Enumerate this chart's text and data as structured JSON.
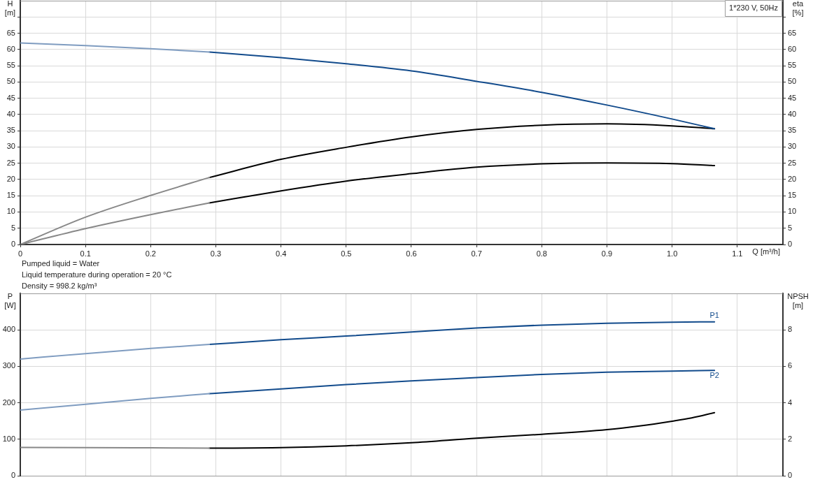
{
  "chart_data": [
    {
      "type": "line",
      "xlabel": "Q [m³/h]",
      "ylabel": "H [m]",
      "y2label": "eta [%]",
      "annotations": [
        "1*230 V, 50Hz"
      ],
      "xlim": [
        0,
        1.17
      ],
      "xticks": [
        0,
        0.1,
        0.2,
        0.3,
        0.4,
        0.5,
        0.6,
        0.7,
        0.8,
        0.9,
        {
          "value": 1,
          "label": "1.0"
        },
        1.1
      ],
      "ylim": [
        0,
        75
      ],
      "yticks": [
        0,
        5,
        10,
        15,
        20,
        25,
        30,
        35,
        40,
        45,
        50,
        55,
        60,
        65,
        {
          "value": 70,
          "label": null
        }
      ],
      "y2lim": [
        0,
        75
      ],
      "y2ticks": [
        0,
        5,
        10,
        15,
        20,
        25,
        30,
        35,
        40,
        45,
        50,
        55,
        60,
        65,
        {
          "value": 70,
          "label": null
        }
      ],
      "grid": true,
      "series": [
        {
          "color": "#7f9cc0",
          "x": [
            0,
            0.1,
            0.2,
            0.29
          ],
          "values": [
            62,
            61.2,
            60.2,
            59.2
          ]
        },
        {
          "color": "#124b8c",
          "x": [
            0.29,
            0.4,
            0.5,
            0.6,
            0.7,
            0.8,
            0.9,
            1.0,
            1.065
          ],
          "values": [
            59.2,
            57.5,
            55.6,
            53.4,
            50.2,
            46.8,
            42.9,
            38.6,
            35.6
          ]
        },
        {
          "color": "#888888",
          "axis": "y2",
          "x": [
            0,
            0.1,
            0.2,
            0.29
          ],
          "values": [
            0,
            8.4,
            15.1,
            20.6
          ]
        },
        {
          "color": "#000000",
          "axis": "y2",
          "x": [
            0.29,
            0.4,
            0.5,
            0.6,
            0.7,
            0.8,
            0.9,
            1.0,
            1.065
          ],
          "values": [
            20.6,
            26.2,
            29.9,
            33.1,
            35.4,
            36.7,
            37.1,
            36.5,
            35.6
          ]
        },
        {
          "color": "#888888",
          "axis": "y2",
          "x": [
            0,
            0.1,
            0.2,
            0.29
          ],
          "values": [
            0,
            4.9,
            9.2,
            12.8
          ]
        },
        {
          "color": "#000000",
          "axis": "y2",
          "x": [
            0.29,
            0.4,
            0.5,
            0.6,
            0.7,
            0.8,
            0.9,
            1.0,
            1.065
          ],
          "values": [
            12.8,
            16.5,
            19.5,
            21.8,
            23.8,
            24.8,
            25.1,
            24.9,
            24.3
          ]
        }
      ]
    },
    {
      "type": "line",
      "ylabel": "P [W]",
      "y2label": "NPSH [m]",
      "annotations": [
        "Pumped liquid = Water",
        "Liquid temperature during operation = 20 °C",
        "Density = 998.2 kg/m³"
      ],
      "xlim": [
        0,
        1.17
      ],
      "xticks": [
        0,
        0.1,
        0.2,
        0.3,
        0.4,
        0.5,
        0.6,
        0.7,
        0.8,
        0.9,
        1,
        1.1
      ],
      "tick_labels": "y",
      "ylim": [
        0,
        500
      ],
      "yticks": [
        0,
        100,
        200,
        300,
        400
      ],
      "y2lim": [
        0,
        10
      ],
      "y2ticks": [
        0,
        2,
        4,
        6,
        8
      ],
      "grid": true,
      "series": [
        {
          "color": "#7f9cc0",
          "x": [
            0,
            0.1,
            0.2,
            0.29
          ],
          "values": [
            320,
            335,
            349,
            360
          ]
        },
        {
          "name": "P1",
          "color": "#124b8c",
          "x": [
            0.29,
            0.4,
            0.5,
            0.6,
            0.7,
            0.8,
            0.9,
            1.0,
            1.065
          ],
          "values": [
            360,
            373,
            383,
            394,
            405,
            413,
            418,
            421,
            422
          ]
        },
        {
          "color": "#7f9cc0",
          "x": [
            0,
            0.1,
            0.2,
            0.29
          ],
          "values": [
            180,
            196,
            212,
            225
          ]
        },
        {
          "name": "P2",
          "color": "#124b8c",
          "x": [
            0.29,
            0.4,
            0.5,
            0.6,
            0.7,
            0.8,
            0.9,
            1.0,
            1.065
          ],
          "values": [
            225,
            238,
            250,
            260,
            269,
            278,
            284,
            287,
            289
          ]
        },
        {
          "color": "#888888",
          "axis": "y2",
          "x": [
            0,
            0.1,
            0.2,
            0.29
          ],
          "values": [
            1.55,
            1.54,
            1.53,
            1.51
          ]
        },
        {
          "color": "#000000",
          "axis": "y2",
          "x": [
            0.29,
            0.4,
            0.5,
            0.6,
            0.7,
            0.8,
            0.9,
            0.95,
            1.0,
            1.03,
            1.065
          ],
          "values": [
            1.51,
            1.54,
            1.64,
            1.81,
            2.06,
            2.27,
            2.53,
            2.73,
            2.99,
            3.17,
            3.46
          ]
        }
      ]
    }
  ]
}
